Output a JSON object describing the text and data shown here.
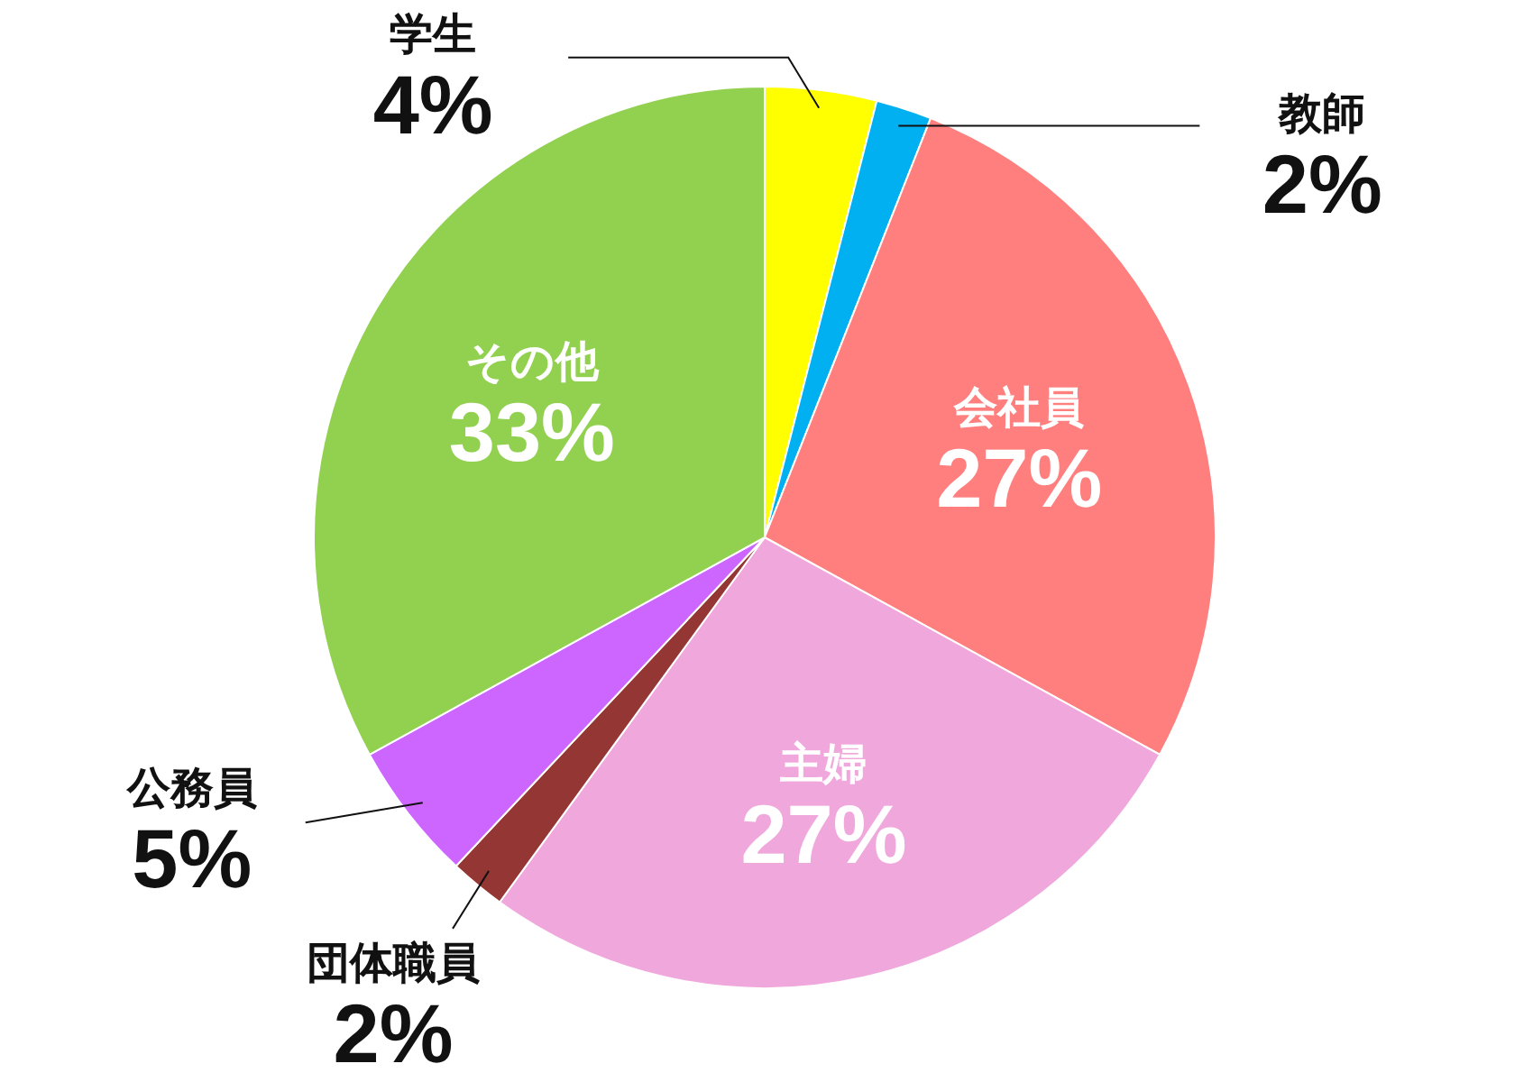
{
  "chart_data": {
    "type": "pie",
    "categories": [
      "学生",
      "教師",
      "会社員",
      "主婦",
      "団体職員",
      "公務員",
      "その他"
    ],
    "values": [
      4,
      2,
      27,
      27,
      2,
      5,
      33
    ],
    "value_labels": [
      "4%",
      "2%",
      "27%",
      "27%",
      "2%",
      "5%",
      "33%"
    ],
    "colors": [
      "#ffff00",
      "#00b0f0",
      "#ff7f7f",
      "#f0a8dc",
      "#943634",
      "#cc66ff",
      "#92d050"
    ]
  }
}
